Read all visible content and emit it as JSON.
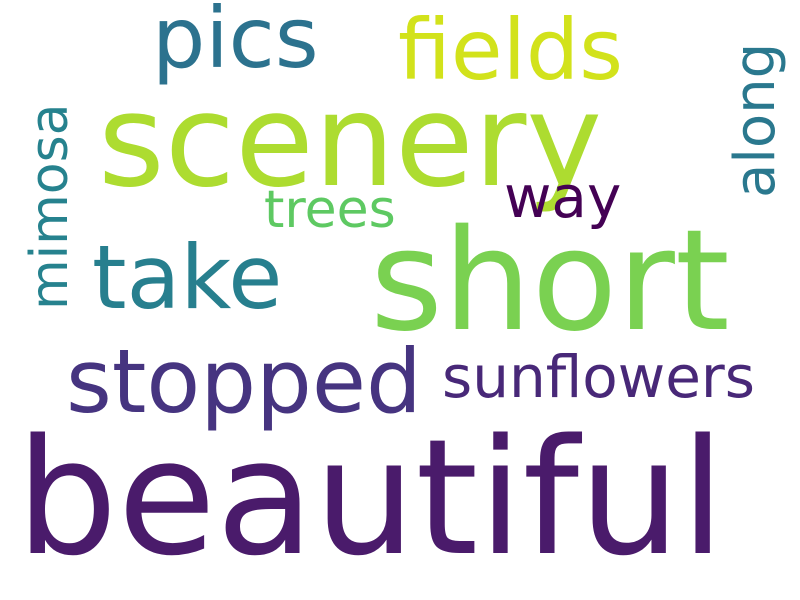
{
  "words": [
    {
      "text": "beautiful",
      "color": "#4a1b6b",
      "orientation": "horizontal"
    },
    {
      "text": "scenery",
      "color": "#addc30",
      "orientation": "horizontal"
    },
    {
      "text": "short",
      "color": "#7ad151",
      "orientation": "horizontal"
    },
    {
      "text": "stopped",
      "color": "#463480",
      "orientation": "horizontal"
    },
    {
      "text": "take",
      "color": "#277f8e",
      "orientation": "horizontal"
    },
    {
      "text": "pics",
      "color": "#2c728e",
      "orientation": "horizontal"
    },
    {
      "text": "fields",
      "color": "#d2e21b",
      "orientation": "horizontal"
    },
    {
      "text": "sunflowers",
      "color": "#482878",
      "orientation": "horizontal"
    },
    {
      "text": "way",
      "color": "#440154",
      "orientation": "horizontal"
    },
    {
      "text": "trees",
      "color": "#5ec962",
      "orientation": "horizontal"
    },
    {
      "text": "mimosa",
      "color": "#26828e",
      "orientation": "vertical"
    },
    {
      "text": "along",
      "color": "#2a788e",
      "orientation": "vertical"
    }
  ]
}
